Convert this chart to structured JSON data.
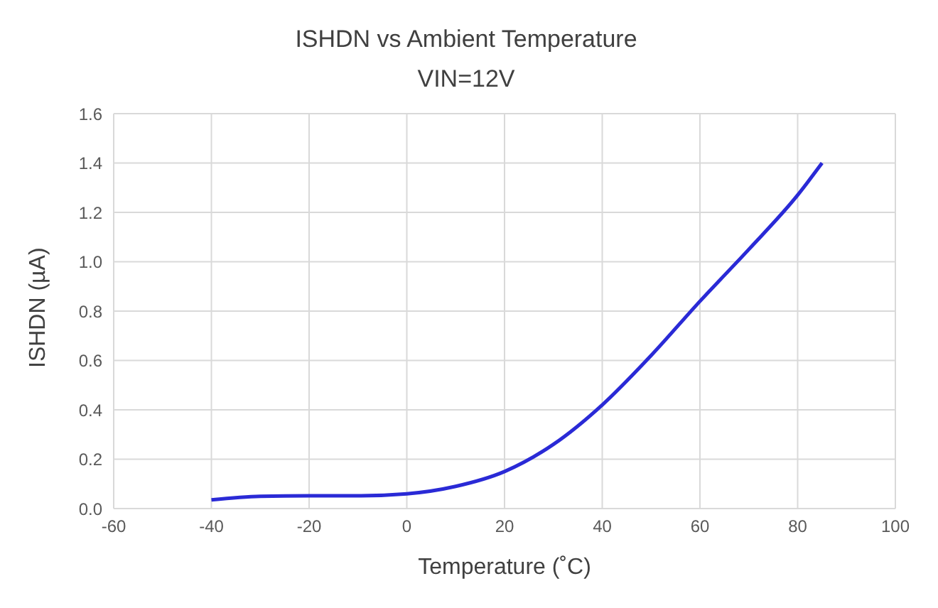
{
  "chart_data": {
    "type": "line",
    "title": "ISHDN vs Ambient Temperature",
    "subtitle": "VIN=12V",
    "xlabel": "Temperature (˚C)",
    "ylabel": "ISHDN (µA)",
    "x": [
      -40,
      -30,
      -20,
      -10,
      0,
      10,
      20,
      30,
      40,
      50,
      60,
      70,
      80,
      85
    ],
    "series": [
      {
        "color": "#2a2ad6",
        "values": [
          0.035,
          0.05,
          0.052,
          0.052,
          0.06,
          0.09,
          0.15,
          0.26,
          0.42,
          0.62,
          0.84,
          1.05,
          1.27,
          1.4
        ]
      }
    ],
    "xlim": [
      -60,
      100
    ],
    "xticks": [
      -60,
      -40,
      -20,
      0,
      20,
      40,
      60,
      80,
      100
    ],
    "ylim": [
      0,
      1.6
    ],
    "yticks": [
      {
        "value": 0,
        "label": "0.0"
      },
      0.2,
      0.4,
      0.6,
      0.8,
      {
        "value": 1,
        "label": "1.0"
      },
      1.2,
      1.4,
      1.6
    ],
    "grid": true,
    "marker": "none",
    "line_style": "solid",
    "legend": false
  }
}
